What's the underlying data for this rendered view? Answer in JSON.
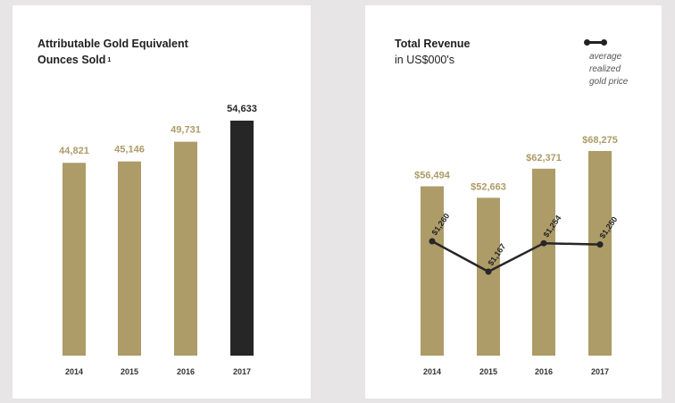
{
  "colors": {
    "gold": "#ad9b68",
    "dark": "#262626",
    "background": "#e7e5e5",
    "panel": "#ffffff"
  },
  "chart_data": [
    {
      "type": "bar",
      "title": "Attributable Gold Equivalent",
      "title_line2": "Ounces Sold",
      "footnote_mark": "1",
      "categories": [
        "2014",
        "2015",
        "2016",
        "2017"
      ],
      "values": [
        44821,
        45146,
        49731,
        54633
      ],
      "value_labels": [
        "44,821",
        "45,146",
        "49,731",
        "54,633"
      ],
      "highlight_index": 3,
      "ylim": [
        0,
        54633
      ]
    },
    {
      "type": "bar",
      "title": "Total Revenue",
      "subtitle": "in US$000's",
      "categories": [
        "2014",
        "2015",
        "2016",
        "2017"
      ],
      "values": [
        56494,
        52663,
        62371,
        68275
      ],
      "value_labels": [
        "$56,494",
        "$52,663",
        "$62,371",
        "$68,275"
      ],
      "ylim": [
        0,
        68275
      ],
      "line_series": {
        "name": "average realized gold price",
        "legend_lines": [
          "average",
          "realized",
          "gold price"
        ],
        "values": [
          1260,
          1167,
          1254,
          1250
        ],
        "value_labels": [
          "$1,260",
          "$1,167",
          "$1,254",
          "$1,250"
        ]
      }
    }
  ]
}
